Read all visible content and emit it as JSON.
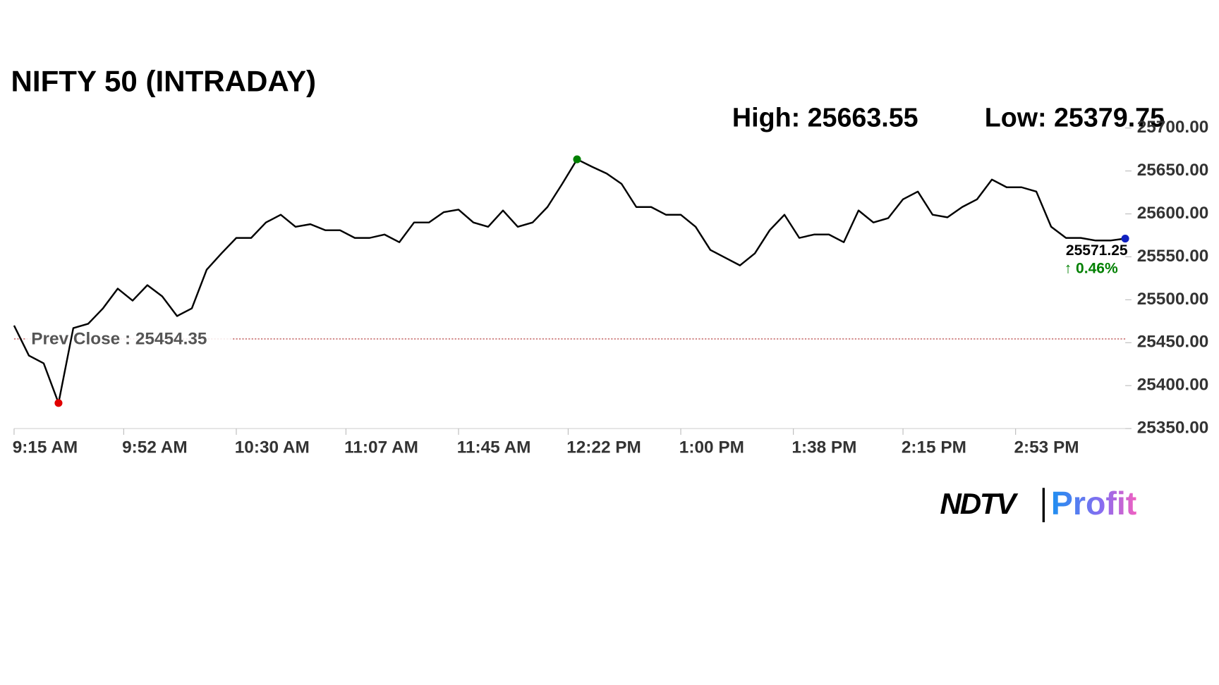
{
  "chart_data": {
    "type": "line",
    "title": "NIFTY 50 (INTRADAY)",
    "high_label": "High: 25663.55",
    "low_label": "Low: 25379.75",
    "prev_close": {
      "label": "Prev Close : 25454.35",
      "value": 25454.35
    },
    "last_label": "25571.25",
    "change_label": "↑ 0.46%",
    "x": [
      "9:15 AM",
      "9:20 AM",
      "9:25 AM",
      "9:30 AM",
      "9:35 AM",
      "9:40 AM",
      "9:45 AM",
      "9:50 AM",
      "9:55 AM",
      "10:00 AM",
      "10:05 AM",
      "10:10 AM",
      "10:15 AM",
      "10:20 AM",
      "10:25 AM",
      "10:30 AM",
      "10:35 AM",
      "10:40 AM",
      "10:45 AM",
      "10:50 AM",
      "10:55 AM",
      "11:00 AM",
      "11:05 AM",
      "11:10 AM",
      "11:15 AM",
      "11:20 AM",
      "11:25 AM",
      "11:30 AM",
      "11:35 AM",
      "11:40 AM",
      "11:45 AM",
      "11:50 AM",
      "11:55 AM",
      "12:00 PM",
      "12:05 PM",
      "12:10 PM",
      "12:15 PM",
      "12:20 PM",
      "12:25 PM",
      "12:30 PM",
      "12:35 PM",
      "12:40 PM",
      "12:45 PM",
      "12:50 PM",
      "12:55 PM",
      "1:00 PM",
      "1:05 PM",
      "1:10 PM",
      "1:15 PM",
      "1:20 PM",
      "1:25 PM",
      "1:30 PM",
      "1:35 PM",
      "1:40 PM",
      "1:45 PM",
      "1:50 PM",
      "1:55 PM",
      "2:00 PM",
      "2:05 PM",
      "2:10 PM",
      "2:15 PM",
      "2:20 PM",
      "2:25 PM",
      "2:30 PM",
      "2:35 PM",
      "2:40 PM",
      "2:45 PM",
      "2:50 PM",
      "2:55 PM",
      "3:00 PM",
      "3:05 PM",
      "3:10 PM",
      "3:15 PM",
      "3:20 PM",
      "3:25 PM",
      "3:30 PM"
    ],
    "series": [
      {
        "name": "NIFTY 50",
        "color": "#000000",
        "values": [
          25470,
          25435,
          25426,
          25379.75,
          25467,
          25472,
          25490,
          25513,
          25499,
          25517,
          25504,
          25481,
          25490,
          25535,
          25554,
          25572,
          25572,
          25590,
          25599,
          25585,
          25588,
          25581,
          25581,
          25572,
          25572,
          25576,
          25567,
          25590,
          25590,
          25602,
          25605,
          25590,
          25585,
          25604,
          25585,
          25590,
          25608,
          25635,
          25663.55,
          25655,
          25647,
          25635,
          25608,
          25608,
          25599,
          25599,
          25585,
          25558,
          25549,
          25540,
          25554,
          25581,
          25599,
          25572,
          25576,
          25576,
          25567,
          25604,
          25590,
          25595,
          25617,
          25626,
          25599,
          25596,
          25608,
          25617,
          25640,
          25631,
          25631,
          25626,
          25585,
          25572,
          25572,
          25569,
          25569,
          25571.25
        ]
      }
    ],
    "xlim": [
      "9:15 AM",
      "3:30 PM"
    ],
    "xticks": [
      "9:15 AM",
      "9:52 AM",
      "10:30 AM",
      "11:07 AM",
      "11:45 AM",
      "12:22 PM",
      "1:00 PM",
      "1:38 PM",
      "2:15 PM",
      "2:53 PM"
    ],
    "ylim": [
      25350,
      25700
    ],
    "yticks": [
      {
        "value": 25350,
        "label": "25350.00"
      },
      {
        "value": 25400,
        "label": "25400.00"
      },
      {
        "value": 25450,
        "label": "25450.00"
      },
      {
        "value": 25500,
        "label": "25500.00"
      },
      {
        "value": 25550,
        "label": "25550.00"
      },
      {
        "value": 25600,
        "label": "25600.00"
      },
      {
        "value": 25650,
        "label": "25650.00"
      },
      {
        "value": 25700,
        "label": "25700.00"
      }
    ],
    "high_color": "#008000",
    "low_color": "#e00000",
    "last_color": "#1020c0",
    "prev_close_color": "#b03030",
    "change_color": "#008000"
  },
  "logo": {
    "left": "NDTV",
    "right": "Profit"
  }
}
